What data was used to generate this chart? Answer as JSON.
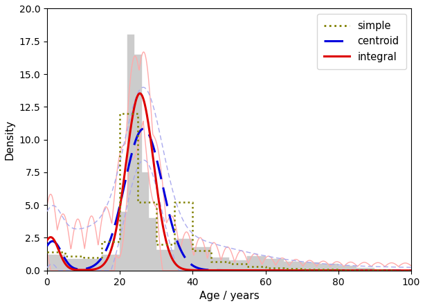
{
  "title": "",
  "xlabel": "Age / years",
  "ylabel": "Density",
  "xlim": [
    0,
    100
  ],
  "ylim": [
    0,
    20
  ],
  "figsize": [
    6.14,
    4.42
  ],
  "dpi": 100,
  "simple_color": "#808000",
  "centroid_color": "#0000dd",
  "integral_color": "#dd0000",
  "centroid_band_color": "#aaaaee",
  "integral_band_color": "#ffaaaa",
  "hist_color": "#cccccc"
}
